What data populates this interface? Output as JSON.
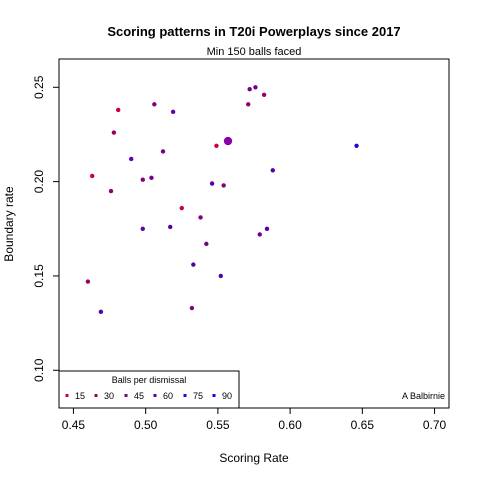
{
  "chart_data": {
    "type": "scatter",
    "title": "Scoring patterns in T20i Powerplays since 2017",
    "subtitle": "Min 150 balls faced",
    "xlabel": "Scoring Rate",
    "ylabel": "Boundary rate",
    "xlim": [
      0.44,
      0.71
    ],
    "ylim": [
      0.08,
      0.265
    ],
    "x_ticks": [
      "0.45",
      "0.50",
      "0.55",
      "0.60",
      "0.65",
      "0.70"
    ],
    "y_ticks": [
      "0.10",
      "0.15",
      "0.20",
      "0.25"
    ],
    "grid": false,
    "legend": {
      "title": "Balls per dismissal",
      "placement": "bottom-left",
      "entries": [
        {
          "label": "15",
          "color": "#cc0033"
        },
        {
          "label": "30",
          "color": "#990066"
        },
        {
          "label": "45",
          "color": "#770088"
        },
        {
          "label": "60",
          "color": "#5500aa"
        },
        {
          "label": "75",
          "color": "#3300cc"
        },
        {
          "label": "90",
          "color": "#1a00e6"
        }
      ]
    },
    "annotation": "A Balbirnie",
    "highlight": {
      "x": 0.557,
      "y": 0.2215,
      "color": "#8800aa"
    },
    "points": [
      {
        "x": 0.481,
        "y": 0.238,
        "color": "#cc0033"
      },
      {
        "x": 0.463,
        "y": 0.203,
        "color": "#cc0033"
      },
      {
        "x": 0.46,
        "y": 0.147,
        "color": "#990066"
      },
      {
        "x": 0.469,
        "y": 0.131,
        "color": "#5500aa"
      },
      {
        "x": 0.478,
        "y": 0.226,
        "color": "#990066"
      },
      {
        "x": 0.476,
        "y": 0.195,
        "color": "#880077"
      },
      {
        "x": 0.49,
        "y": 0.212,
        "color": "#6600aa"
      },
      {
        "x": 0.498,
        "y": 0.201,
        "color": "#880077"
      },
      {
        "x": 0.504,
        "y": 0.202,
        "color": "#770088"
      },
      {
        "x": 0.506,
        "y": 0.241,
        "color": "#880077"
      },
      {
        "x": 0.498,
        "y": 0.175,
        "color": "#6600aa"
      },
      {
        "x": 0.512,
        "y": 0.216,
        "color": "#770088"
      },
      {
        "x": 0.519,
        "y": 0.237,
        "color": "#6600aa"
      },
      {
        "x": 0.517,
        "y": 0.176,
        "color": "#5500aa"
      },
      {
        "x": 0.525,
        "y": 0.186,
        "color": "#cc0033"
      },
      {
        "x": 0.532,
        "y": 0.133,
        "color": "#880077"
      },
      {
        "x": 0.533,
        "y": 0.156,
        "color": "#5500aa"
      },
      {
        "x": 0.538,
        "y": 0.181,
        "color": "#880077"
      },
      {
        "x": 0.542,
        "y": 0.167,
        "color": "#770088"
      },
      {
        "x": 0.546,
        "y": 0.199,
        "color": "#5500aa"
      },
      {
        "x": 0.549,
        "y": 0.219,
        "color": "#cc0033"
      },
      {
        "x": 0.552,
        "y": 0.15,
        "color": "#5500aa"
      },
      {
        "x": 0.554,
        "y": 0.198,
        "color": "#880077"
      },
      {
        "x": 0.571,
        "y": 0.241,
        "color": "#990066"
      },
      {
        "x": 0.572,
        "y": 0.249,
        "color": "#770088"
      },
      {
        "x": 0.576,
        "y": 0.25,
        "color": "#770088"
      },
      {
        "x": 0.582,
        "y": 0.246,
        "color": "#990066"
      },
      {
        "x": 0.579,
        "y": 0.172,
        "color": "#770088"
      },
      {
        "x": 0.584,
        "y": 0.175,
        "color": "#5500aa"
      },
      {
        "x": 0.588,
        "y": 0.206,
        "color": "#5500aa"
      },
      {
        "x": 0.646,
        "y": 0.219,
        "color": "#3300cc"
      }
    ]
  }
}
